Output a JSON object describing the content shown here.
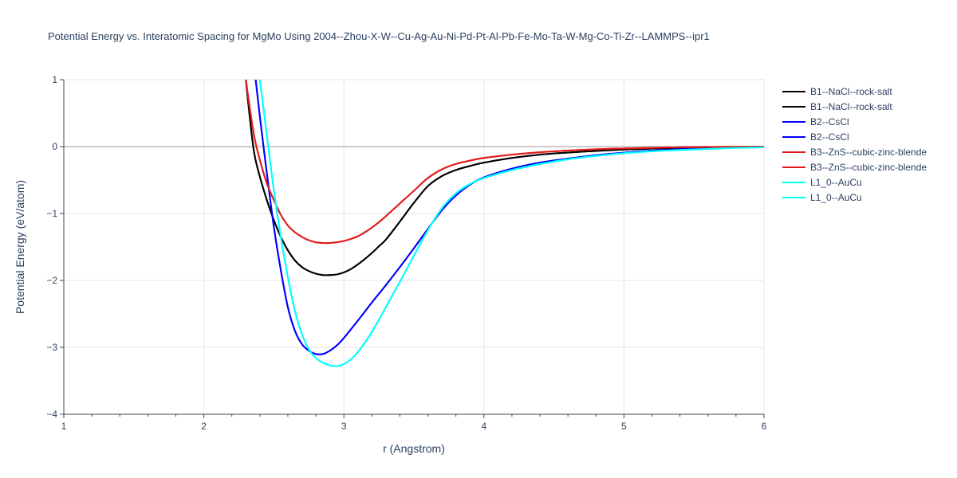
{
  "chart_data": {
    "type": "line",
    "title": "Potential Energy vs. Interatomic Spacing for MgMo Using 2004--Zhou-X-W--Cu-Ag-Au-Ni-Pd-Pt-Al-Pb-Fe-Mo-Ta-W-Mg-Co-Ti-Zr--LAMMPS--ipr1",
    "xlabel": "r (Angstrom)",
    "ylabel": "Potential Energy (eV/atom)",
    "xlim": [
      1,
      6
    ],
    "ylim": [
      -4,
      1
    ],
    "xticks": [
      "1",
      "2",
      "3",
      "4",
      "5",
      "6"
    ],
    "yticks": [
      "1",
      "0",
      "−1",
      "−2",
      "−3",
      "−4"
    ],
    "legend_position": "right",
    "series": [
      {
        "name": "B1--NaCl--rock-salt",
        "color": "#000000",
        "x": [
          2.3,
          2.33,
          2.36,
          2.4,
          2.45,
          2.5,
          2.55,
          2.6,
          2.65,
          2.7,
          2.75,
          2.8,
          2.85,
          2.9,
          2.95,
          3.0,
          3.05,
          3.1,
          3.15,
          3.2,
          3.25,
          3.3,
          3.4,
          3.5,
          3.6,
          3.7,
          3.8,
          3.9,
          4.0,
          4.2,
          4.4,
          4.6,
          4.8,
          5.0,
          5.2,
          5.4,
          5.6,
          5.8,
          6.0
        ],
        "y": [
          1.0,
          0.4,
          -0.1,
          -0.45,
          -0.8,
          -1.1,
          -1.35,
          -1.55,
          -1.7,
          -1.8,
          -1.86,
          -1.9,
          -1.92,
          -1.92,
          -1.91,
          -1.88,
          -1.83,
          -1.76,
          -1.68,
          -1.59,
          -1.49,
          -1.39,
          -1.12,
          -0.84,
          -0.59,
          -0.44,
          -0.35,
          -0.29,
          -0.24,
          -0.17,
          -0.12,
          -0.09,
          -0.065,
          -0.045,
          -0.03,
          -0.02,
          -0.012,
          -0.006,
          0.0
        ]
      },
      {
        "name": "B1--NaCl--rock-salt",
        "color": "#000000",
        "x": [
          2.3,
          2.33,
          2.36,
          2.4,
          2.45,
          2.5,
          2.55,
          2.6,
          2.65,
          2.7,
          2.75,
          2.8,
          2.85,
          2.9,
          2.95,
          3.0,
          3.05,
          3.1,
          3.15,
          3.2,
          3.25,
          3.3,
          3.4,
          3.5,
          3.6,
          3.7,
          3.8,
          3.9,
          4.0,
          4.2,
          4.4,
          4.6,
          4.8,
          5.0,
          5.2,
          5.4,
          5.6,
          5.8,
          6.0
        ],
        "y": [
          1.0,
          0.4,
          -0.1,
          -0.45,
          -0.8,
          -1.1,
          -1.35,
          -1.55,
          -1.7,
          -1.8,
          -1.86,
          -1.9,
          -1.92,
          -1.92,
          -1.91,
          -1.88,
          -1.83,
          -1.76,
          -1.68,
          -1.59,
          -1.49,
          -1.39,
          -1.12,
          -0.84,
          -0.59,
          -0.44,
          -0.35,
          -0.29,
          -0.24,
          -0.17,
          -0.12,
          -0.09,
          -0.065,
          -0.045,
          -0.03,
          -0.02,
          -0.012,
          -0.006,
          0.0
        ]
      },
      {
        "name": "B2--CsCl",
        "color": "#0000ff",
        "x": [
          2.37,
          2.4,
          2.45,
          2.5,
          2.55,
          2.6,
          2.65,
          2.7,
          2.75,
          2.8,
          2.85,
          2.9,
          2.95,
          3.0,
          3.1,
          3.2,
          3.3,
          3.4,
          3.5,
          3.6,
          3.7,
          3.8,
          3.9,
          4.0,
          4.2,
          4.4,
          4.6,
          4.8,
          5.0,
          5.2,
          5.4,
          5.6,
          5.8,
          6.0
        ],
        "y": [
          1.0,
          0.45,
          -0.4,
          -1.2,
          -1.85,
          -2.4,
          -2.75,
          -2.95,
          -3.05,
          -3.1,
          -3.1,
          -3.05,
          -2.97,
          -2.86,
          -2.6,
          -2.33,
          -2.07,
          -1.8,
          -1.52,
          -1.23,
          -0.95,
          -0.73,
          -0.57,
          -0.46,
          -0.33,
          -0.24,
          -0.18,
          -0.13,
          -0.09,
          -0.06,
          -0.04,
          -0.025,
          -0.012,
          0.0
        ]
      },
      {
        "name": "B2--CsCl",
        "color": "#0000ff",
        "x": [
          2.37,
          2.4,
          2.45,
          2.5,
          2.55,
          2.6,
          2.65,
          2.7,
          2.75,
          2.8,
          2.85,
          2.9,
          2.95,
          3.0,
          3.1,
          3.2,
          3.3,
          3.4,
          3.5,
          3.6,
          3.7,
          3.8,
          3.9,
          4.0,
          4.2,
          4.4,
          4.6,
          4.8,
          5.0,
          5.2,
          5.4,
          5.6,
          5.8,
          6.0
        ],
        "y": [
          1.0,
          0.45,
          -0.4,
          -1.2,
          -1.85,
          -2.4,
          -2.75,
          -2.95,
          -3.05,
          -3.1,
          -3.1,
          -3.05,
          -2.97,
          -2.86,
          -2.6,
          -2.33,
          -2.07,
          -1.8,
          -1.52,
          -1.23,
          -0.95,
          -0.73,
          -0.57,
          -0.46,
          -0.33,
          -0.24,
          -0.18,
          -0.13,
          -0.09,
          -0.06,
          -0.04,
          -0.025,
          -0.012,
          0.0
        ]
      },
      {
        "name": "B3--ZnS--cubic-zinc-blende",
        "color": "#e31a1c",
        "x": [
          2.3,
          2.33,
          2.36,
          2.4,
          2.45,
          2.5,
          2.55,
          2.6,
          2.65,
          2.7,
          2.75,
          2.8,
          2.85,
          2.9,
          2.95,
          3.0,
          3.05,
          3.1,
          3.15,
          3.2,
          3.25,
          3.3,
          3.4,
          3.5,
          3.6,
          3.7,
          3.8,
          3.9,
          4.0,
          4.2,
          4.4,
          4.6,
          4.8,
          5.0,
          5.2,
          5.4,
          5.6,
          5.8,
          6.0
        ],
        "y": [
          1.0,
          0.55,
          0.15,
          -0.2,
          -0.55,
          -0.8,
          -1.02,
          -1.18,
          -1.28,
          -1.35,
          -1.4,
          -1.43,
          -1.44,
          -1.44,
          -1.43,
          -1.41,
          -1.38,
          -1.34,
          -1.28,
          -1.21,
          -1.13,
          -1.04,
          -0.85,
          -0.66,
          -0.47,
          -0.34,
          -0.26,
          -0.21,
          -0.17,
          -0.12,
          -0.085,
          -0.06,
          -0.04,
          -0.028,
          -0.018,
          -0.011,
          -0.006,
          -0.003,
          0.0
        ]
      },
      {
        "name": "B3--ZnS--cubic-zinc-blende",
        "color": "#e31a1c",
        "x": [
          2.3,
          2.33,
          2.36,
          2.4,
          2.45,
          2.5,
          2.55,
          2.6,
          2.65,
          2.7,
          2.75,
          2.8,
          2.85,
          2.9,
          2.95,
          3.0,
          3.05,
          3.1,
          3.15,
          3.2,
          3.25,
          3.3,
          3.4,
          3.5,
          3.6,
          3.7,
          3.8,
          3.9,
          4.0,
          4.2,
          4.4,
          4.6,
          4.8,
          5.0,
          5.2,
          5.4,
          5.6,
          5.8,
          6.0
        ],
        "y": [
          1.0,
          0.55,
          0.15,
          -0.2,
          -0.55,
          -0.8,
          -1.02,
          -1.18,
          -1.28,
          -1.35,
          -1.4,
          -1.43,
          -1.44,
          -1.44,
          -1.43,
          -1.41,
          -1.38,
          -1.34,
          -1.28,
          -1.21,
          -1.13,
          -1.04,
          -0.85,
          -0.66,
          -0.47,
          -0.34,
          -0.26,
          -0.21,
          -0.17,
          -0.12,
          -0.085,
          -0.06,
          -0.04,
          -0.028,
          -0.018,
          -0.011,
          -0.006,
          -0.003,
          0.0
        ]
      },
      {
        "name": "L1_0--AuCu",
        "color": "#00ffff",
        "x": [
          2.4,
          2.43,
          2.46,
          2.5,
          2.55,
          2.6,
          2.65,
          2.7,
          2.75,
          2.8,
          2.85,
          2.9,
          2.95,
          3.0,
          3.05,
          3.1,
          3.15,
          3.2,
          3.3,
          3.4,
          3.5,
          3.6,
          3.7,
          3.8,
          3.9,
          4.0,
          4.2,
          4.4,
          4.6,
          4.8,
          5.0,
          5.2,
          5.4,
          5.6,
          5.8,
          6.0
        ],
        "y": [
          1.0,
          0.5,
          0.0,
          -0.65,
          -1.35,
          -1.95,
          -2.45,
          -2.8,
          -3.03,
          -3.16,
          -3.23,
          -3.27,
          -3.28,
          -3.25,
          -3.18,
          -3.07,
          -2.93,
          -2.77,
          -2.4,
          -2.02,
          -1.63,
          -1.25,
          -0.92,
          -0.7,
          -0.56,
          -0.47,
          -0.35,
          -0.26,
          -0.19,
          -0.14,
          -0.1,
          -0.07,
          -0.05,
          -0.035,
          -0.02,
          -0.01
        ]
      },
      {
        "name": "L1_0--AuCu",
        "color": "#00ffff",
        "x": [
          2.4,
          2.43,
          2.46,
          2.5,
          2.55,
          2.6,
          2.65,
          2.7,
          2.75,
          2.8,
          2.85,
          2.9,
          2.95,
          3.0,
          3.05,
          3.1,
          3.15,
          3.2,
          3.3,
          3.4,
          3.5,
          3.6,
          3.7,
          3.8,
          3.9,
          4.0,
          4.2,
          4.4,
          4.6,
          4.8,
          5.0,
          5.2,
          5.4,
          5.6,
          5.8,
          6.0
        ],
        "y": [
          1.0,
          0.5,
          0.0,
          -0.65,
          -1.35,
          -1.95,
          -2.45,
          -2.8,
          -3.03,
          -3.16,
          -3.23,
          -3.27,
          -3.28,
          -3.25,
          -3.18,
          -3.07,
          -2.93,
          -2.77,
          -2.4,
          -2.02,
          -1.63,
          -1.25,
          -0.92,
          -0.7,
          -0.56,
          -0.47,
          -0.35,
          -0.26,
          -0.19,
          -0.14,
          -0.1,
          -0.07,
          -0.05,
          -0.035,
          -0.02,
          -0.01
        ]
      }
    ]
  }
}
